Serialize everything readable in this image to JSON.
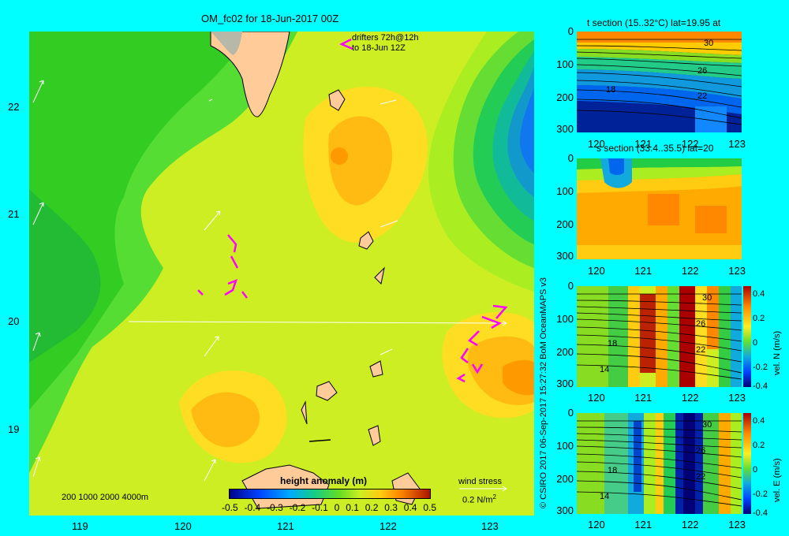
{
  "map": {
    "title": "OM_fc02 for 18-Jun-2017 00Z",
    "drifters_line1": "drifters 72h@12h",
    "drifters_line2": "to 18-Jun 12Z",
    "lon_ticks": [
      "119",
      "120",
      "121",
      "122",
      "123"
    ],
    "lat_ticks": [
      "22",
      "21",
      "20",
      "19"
    ],
    "depth_legend": "200  1000  2000  4000m",
    "colorbar_title": "height anomaly (m)",
    "colorbar_ticks": [
      "-0.5",
      "-0.4",
      "-0.3",
      "-0.2",
      "-0.1",
      "0",
      "0.1",
      "0.2",
      "0.3",
      "0.4",
      "0.5"
    ],
    "wind_stress_label": "wind stress",
    "wind_stress_value": "0.2 N/m",
    "wind_stress_exp": "2"
  },
  "panels": [
    {
      "title": "t section (15..32°C) lat=19.95 at",
      "yticks": [
        "0",
        "100",
        "200",
        "300"
      ],
      "xticks": [
        "120",
        "121",
        "122",
        "123"
      ],
      "contour_labels": [
        "30",
        "26",
        "18",
        "22"
      ]
    },
    {
      "title": "s section (33.4..35.5) lat=20",
      "yticks": [
        "0",
        "100",
        "200",
        "300"
      ],
      "xticks": [
        "120",
        "121",
        "122",
        "123"
      ]
    },
    {
      "yticks": [
        "0",
        "100",
        "200",
        "300"
      ],
      "xticks": [
        "120",
        "121",
        "122",
        "123"
      ],
      "contour_labels": [
        "30",
        "26",
        "18",
        "22",
        "14"
      ],
      "colorbar_ticks": [
        "0.4",
        "0.2",
        "0",
        "-0.2",
        "-0.4"
      ],
      "colorbar_label": "vel. N (m/s)"
    },
    {
      "yticks": [
        "0",
        "100",
        "200",
        "300"
      ],
      "xticks": [
        "120",
        "121",
        "122",
        "123"
      ],
      "contour_labels": [
        "30",
        "26",
        "18",
        "22",
        "14"
      ],
      "colorbar_ticks": [
        "0.4",
        "0.2",
        "0",
        "-0.2",
        "-0.4"
      ],
      "colorbar_label": "vel. E (m/s)"
    }
  ],
  "credit": "© CSIRO 2017   06-Sep-2017 15:27:32 BoM OceanMAPS v3",
  "colors": {
    "background": "#00ffff",
    "green": "#22cc22",
    "yellow_green": "#ccee22",
    "orange": "#ffaa00",
    "land": "#ffcc99",
    "drifter": "#ff00ff"
  }
}
